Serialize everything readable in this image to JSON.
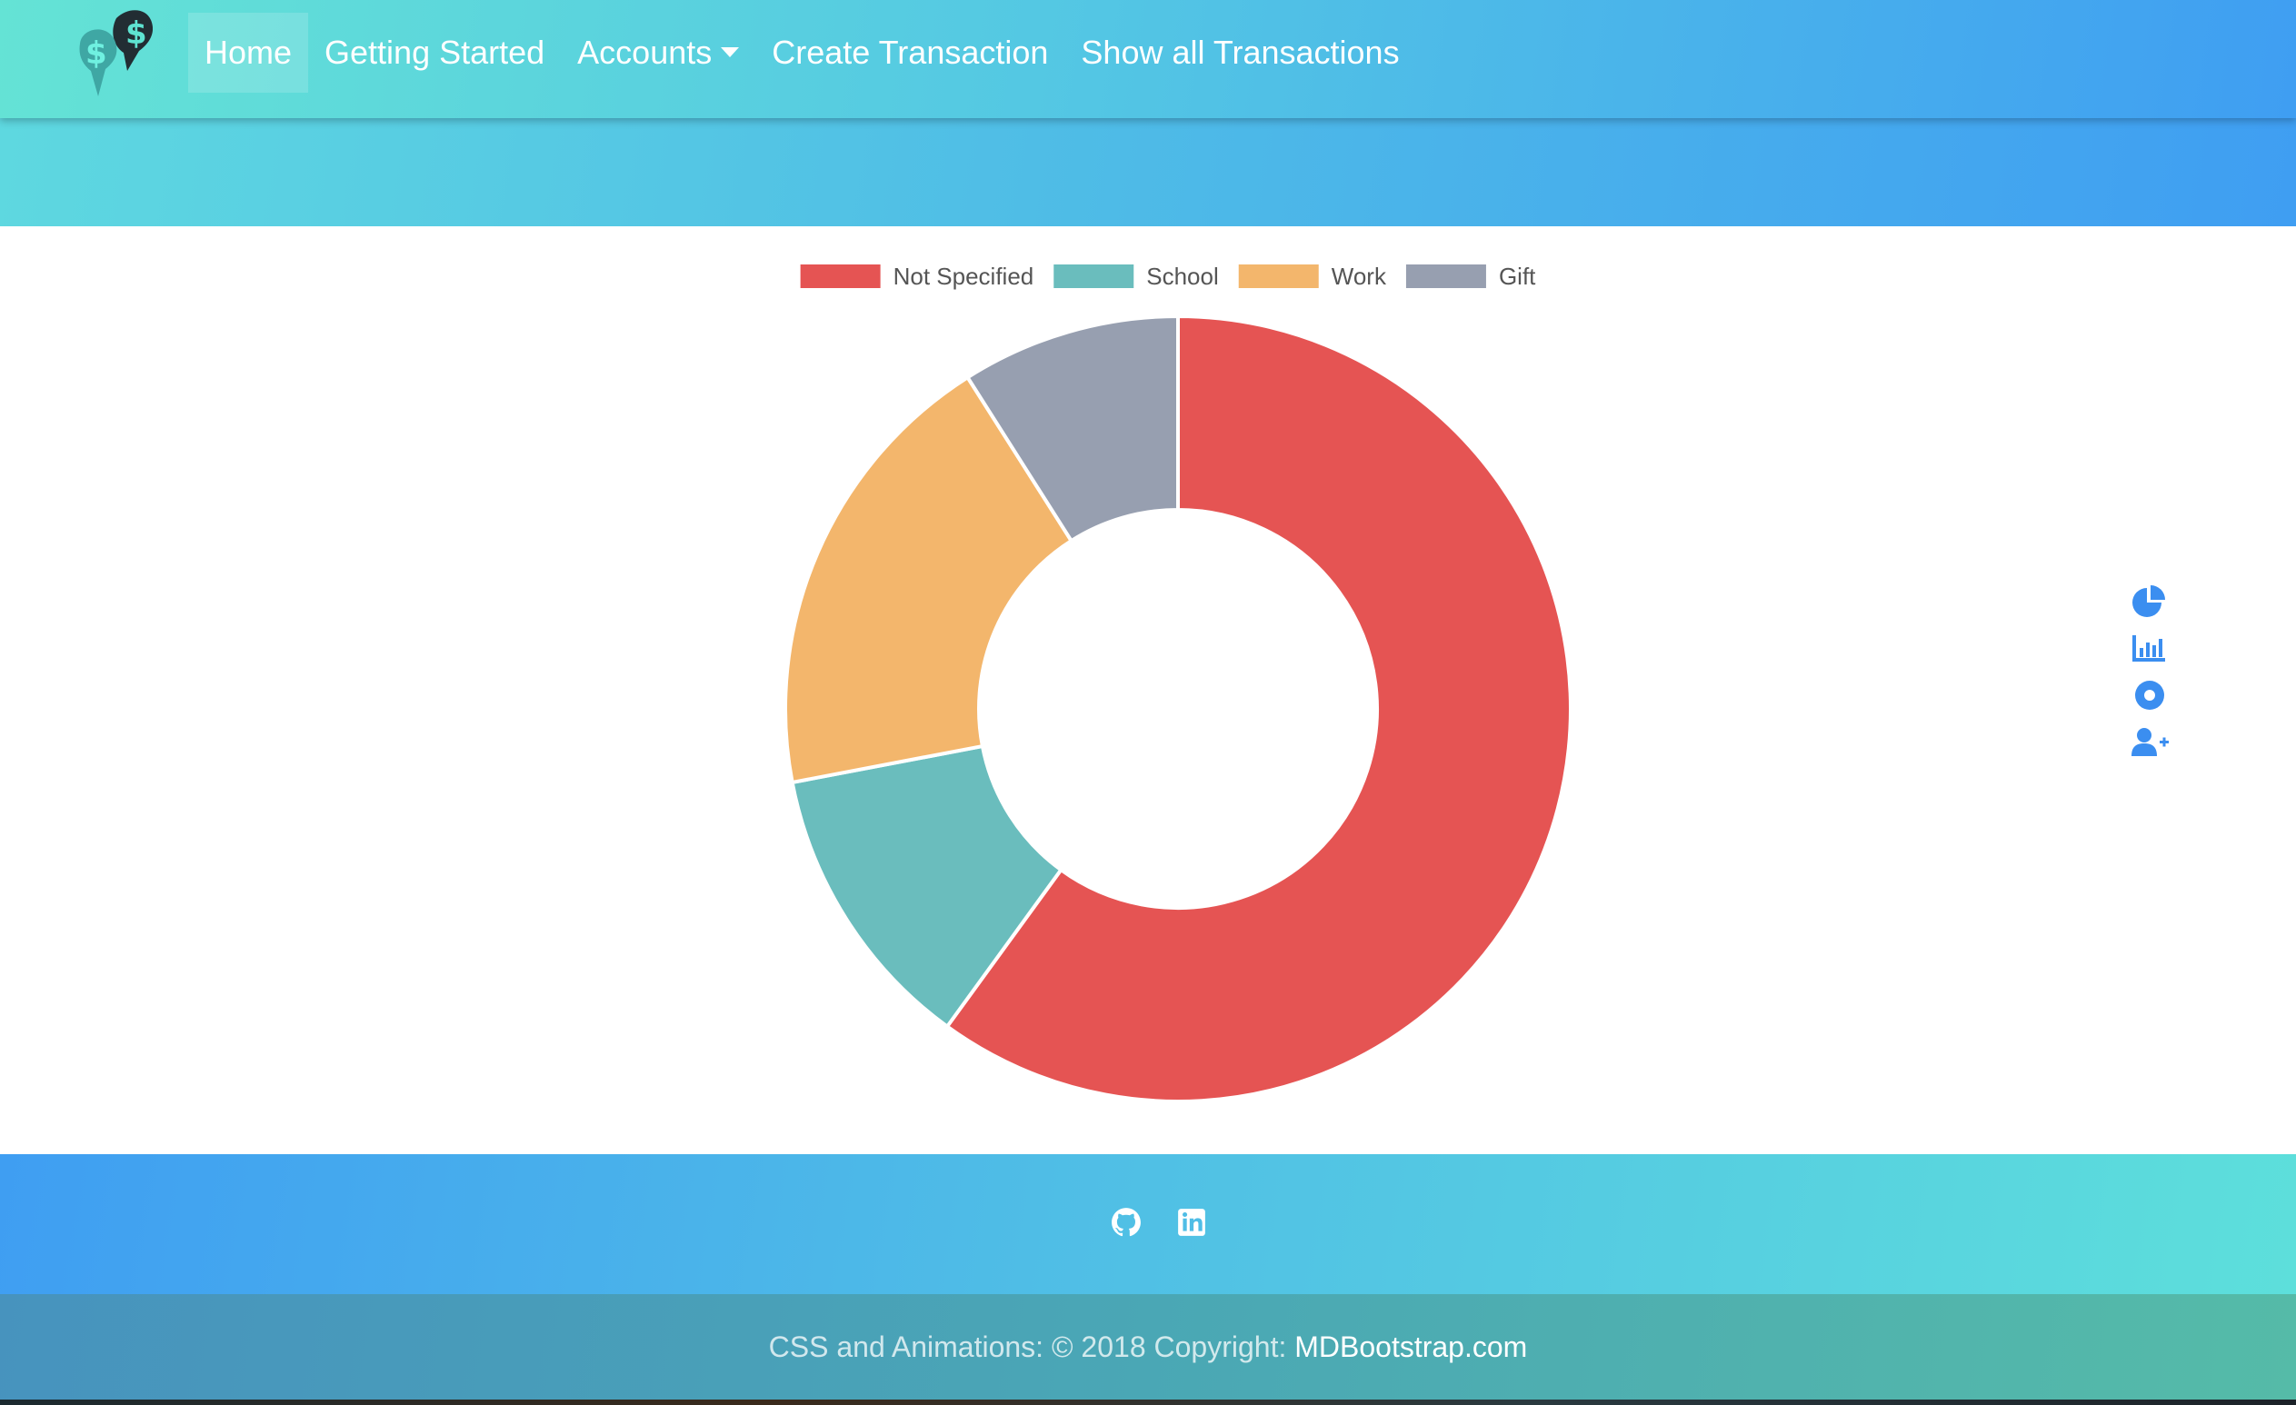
{
  "nav": {
    "brand_icon": "dollar-map-pin-icon",
    "items": [
      {
        "label": "Home",
        "active": true
      },
      {
        "label": "Getting Started"
      },
      {
        "label": "Accounts",
        "dropdown": true
      },
      {
        "label": "Create Transaction"
      },
      {
        "label": "Show all Transactions"
      }
    ]
  },
  "chart_data": {
    "type": "pie",
    "variant": "doughnut",
    "categories": [
      "Not Specified",
      "School",
      "Work",
      "Gift"
    ],
    "values": [
      60,
      12,
      19,
      9
    ],
    "colors": [
      "#e55453",
      "#6abdbd",
      "#f3b66c",
      "#979fb0"
    ],
    "legend": "top"
  },
  "side_icons": [
    "pie-chart-icon",
    "bar-chart-icon",
    "record-circle-icon",
    "add-user-icon"
  ],
  "footer": {
    "social": [
      "github-icon",
      "linkedin-icon"
    ],
    "copyright_prefix": "CSS and Animations: © 2018 Copyright: ",
    "copyright_link": "MDBootstrap.com"
  },
  "colors": {
    "accent": "#3f9ef2",
    "icon_blue": "#3b8ef0"
  }
}
